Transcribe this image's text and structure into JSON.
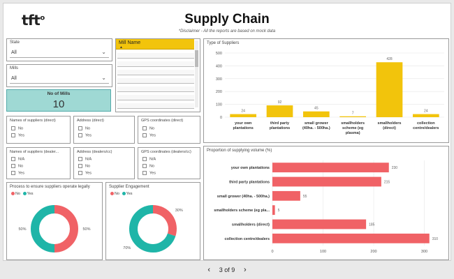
{
  "header": {
    "logo_text": "tft",
    "logo_mark": "o",
    "title": "Supply Chain",
    "disclaimer": "*Disclaimer - All the reports are based on mock data"
  },
  "filters": {
    "state": {
      "label": "State",
      "value": "All"
    },
    "mills": {
      "label": "Mills",
      "value": "All"
    },
    "mill_name": {
      "header": "Mill Name"
    },
    "no_of_mills": {
      "label": "No of Mills",
      "value": "10"
    }
  },
  "checklists": [
    {
      "title": "Names of suppliers (direct)",
      "options": [
        "No",
        "Yes"
      ]
    },
    {
      "title": "Address (direct)",
      "options": [
        "No",
        "Yes"
      ]
    },
    {
      "title": "GPS coordinates (direct)",
      "options": [
        "No",
        "Yes"
      ]
    },
    {
      "title": "Names of suppliers (dealer...",
      "options": [
        "N/A",
        "No",
        "Yes"
      ]
    },
    {
      "title": "Address (dealers/cc)",
      "options": [
        "N/A",
        "No",
        "Yes"
      ]
    },
    {
      "title": "GPS coordinates (dealers/cc)",
      "options": [
        "N/A",
        "No",
        "Yes"
      ]
    }
  ],
  "legend": {
    "no": "No",
    "yes": "Yes"
  },
  "colors": {
    "no": "#f06266",
    "yes": "#1fb5a8",
    "bar_yellow": "#f2c40c",
    "bar_red": "#f06266",
    "card": "#9fd9d4"
  },
  "donut_legal": {
    "title": "Process to ensure suppliers operate legally",
    "no_label": "50%",
    "yes_label": "50%"
  },
  "donut_engage": {
    "title": "Supplier Engagement",
    "no_label": "30%",
    "yes_label": "70%"
  },
  "pager": {
    "current": "3",
    "sep": "of",
    "total": "9",
    "prev_icon": "‹",
    "next_icon": "›"
  },
  "chart_data": [
    {
      "type": "bar",
      "title": "Type of Suppliers",
      "categories": [
        "your own plantations",
        "third party plantations",
        "small grower (40ha. - 500ha.)",
        "smallholders scheme (eg plasma)",
        "smallholders (direct)",
        "collection centre/dealers"
      ],
      "category_lines": [
        [
          "your own",
          "plantations"
        ],
        [
          "third party",
          "plantations"
        ],
        [
          "small grower",
          "(40ha. - 500ha.)"
        ],
        [
          "smallholders",
          "scheme (eg",
          "plasma)"
        ],
        [
          "smallholders",
          "(direct)"
        ],
        [
          "collection",
          "centre/dealers"
        ]
      ],
      "values": [
        24,
        92,
        45,
        7,
        428,
        24
      ],
      "ylim": [
        0,
        500
      ],
      "yticks": [
        0,
        100,
        200,
        300,
        400,
        500
      ]
    },
    {
      "type": "bar",
      "orientation": "horizontal",
      "title": "Proportion of supplying volume (%)",
      "categories": [
        "your own plantations",
        "third party plantations",
        "small grower (40ha. - 500ha.)",
        "smallholders scheme (eg pla...",
        "smallholders (direct)",
        "collection centre/dealers"
      ],
      "values": [
        230,
        215,
        55,
        5,
        185,
        310
      ],
      "xlim": [
        0,
        320
      ],
      "xticks": [
        0,
        100,
        200,
        300
      ]
    },
    {
      "type": "pie",
      "title": "Process to ensure suppliers operate legally",
      "categories": [
        "No",
        "Yes"
      ],
      "values": [
        50,
        50
      ]
    },
    {
      "type": "pie",
      "title": "Supplier Engagement",
      "categories": [
        "No",
        "Yes"
      ],
      "values": [
        30,
        70
      ]
    }
  ]
}
